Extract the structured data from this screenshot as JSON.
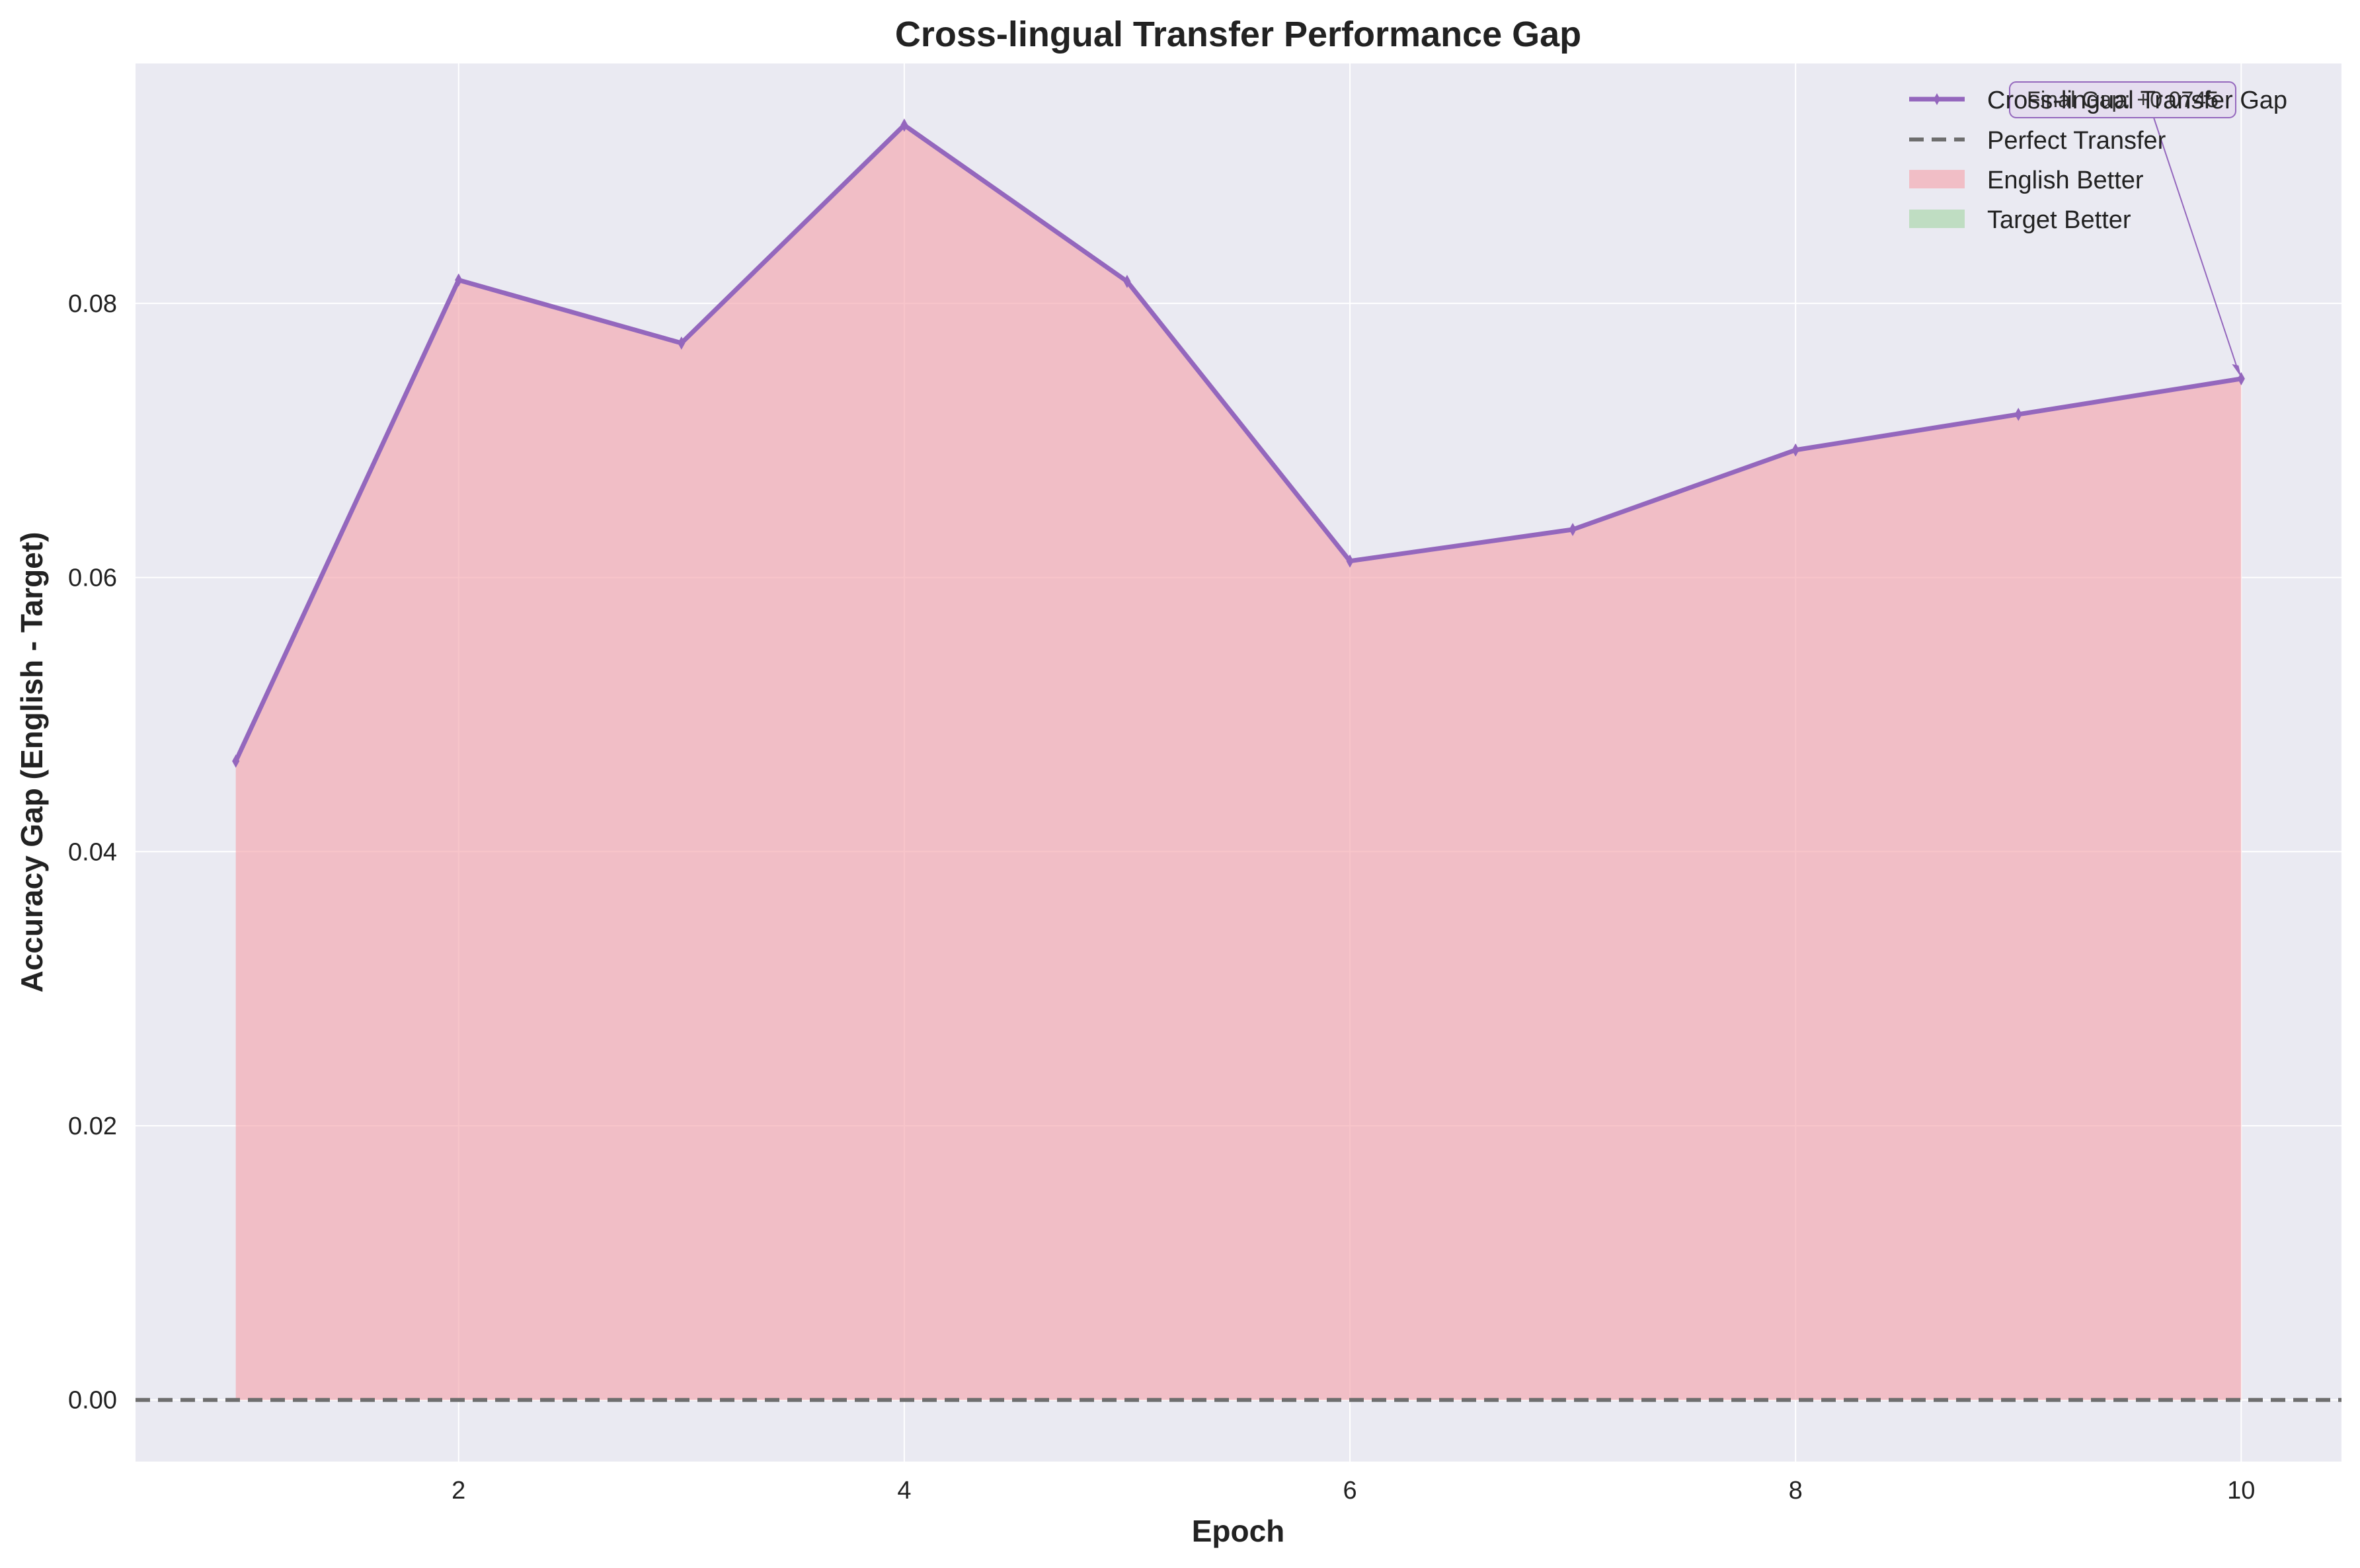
{
  "chart_data": {
    "type": "area",
    "title": "Cross-lingual Transfer Performance Gap",
    "xlabel": "Epoch",
    "ylabel": "Accuracy Gap (English - Target)",
    "xlim": [
      0.55,
      10.45
    ],
    "ylim": [
      -0.0045,
      0.0975
    ],
    "x_ticks": [
      2,
      4,
      6,
      8,
      10
    ],
    "y_ticks": [
      0.0,
      0.02,
      0.04,
      0.06,
      0.08
    ],
    "y_tick_labels": [
      "0.00",
      "0.02",
      "0.04",
      "0.06",
      "0.08"
    ],
    "grid": true,
    "legend_position": "top-right",
    "x": [
      1,
      2,
      3,
      4,
      5,
      6,
      7,
      8,
      9,
      10
    ],
    "series": [
      {
        "name": "Cross-lingual Transfer Gap",
        "style": "line-diamond-markers",
        "color": "#9467bd",
        "values": [
          0.0466,
          0.0817,
          0.0771,
          0.093,
          0.0816,
          0.0612,
          0.0635,
          0.0693,
          0.0719,
          0.0745
        ]
      },
      {
        "name": "Perfect Transfer",
        "style": "dashed-horizontal",
        "color": "#6e6e6e",
        "value": 0.0
      },
      {
        "name": "English Better",
        "style": "fill-above-zero",
        "color": "#f4a6ad"
      },
      {
        "name": "Target Better",
        "style": "fill-below-zero",
        "color": "#a8d5a8"
      }
    ],
    "annotation": {
      "text": "Final Gap: +0.0745",
      "x": 10,
      "y": 0.0745
    },
    "colors": {
      "plot_background": "#eaeaf2",
      "grid": "#ffffff",
      "figure_background": "#ffffff"
    }
  }
}
